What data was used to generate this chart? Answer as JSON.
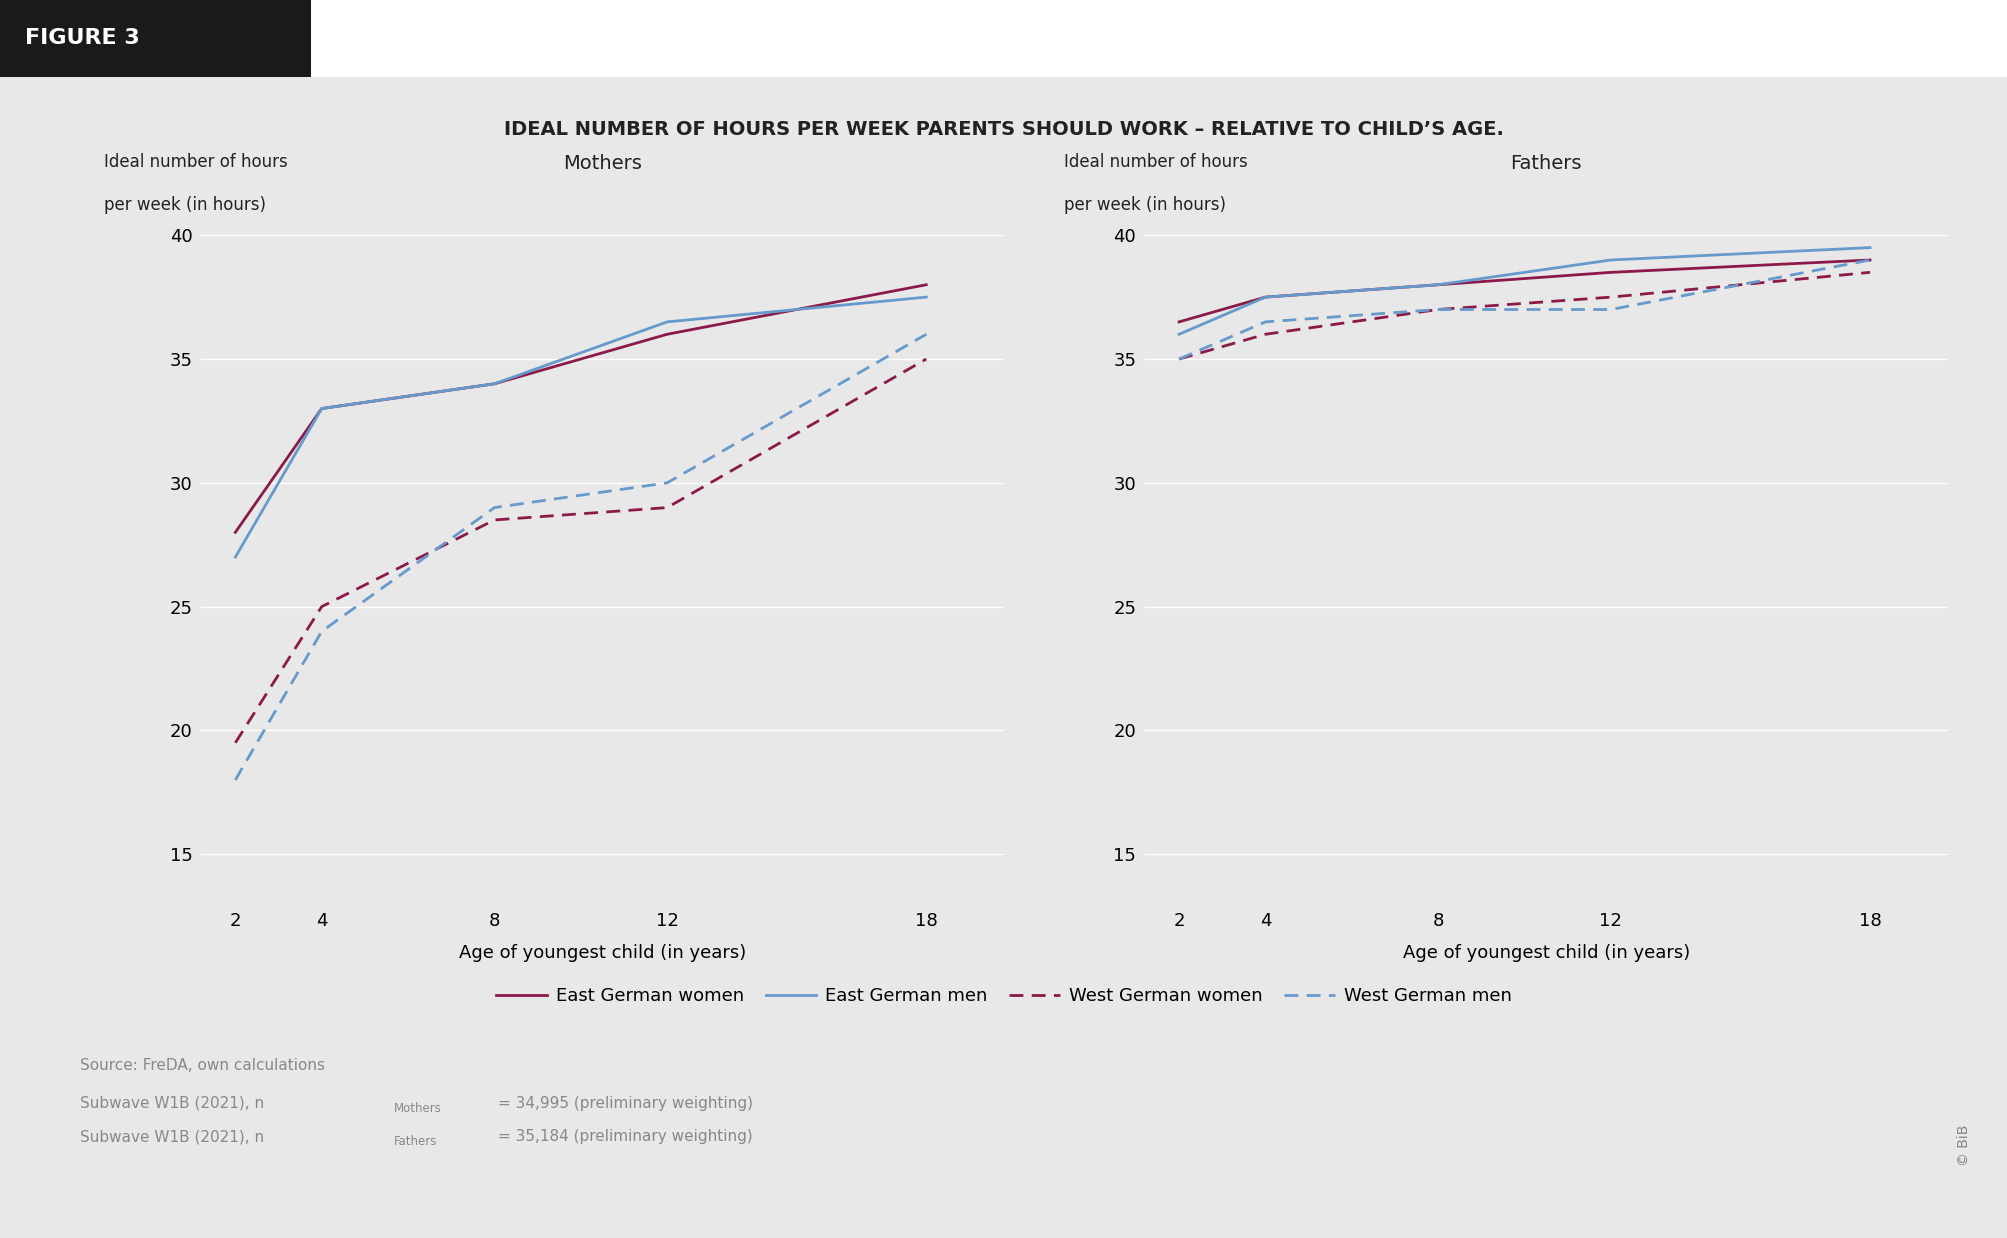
{
  "title": "IDEAL NUMBER OF HOURS PER WEEK PARENTS SHOULD WORK – RELATIVE TO CHILD’S AGE.",
  "subtitle_left": "Mothers",
  "subtitle_right": "Fathers",
  "ylabel_line1": "Ideal number of hours",
  "ylabel_line2": "per week (in hours)",
  "xlabel": "Age of youngest child (in years)",
  "x_values": [
    2,
    4,
    8,
    12,
    18
  ],
  "mothers": {
    "east_women": [
      28.0,
      33.0,
      34.0,
      36.0,
      38.0
    ],
    "east_men": [
      27.0,
      33.0,
      34.0,
      36.5,
      37.5
    ],
    "west_women": [
      19.5,
      25.0,
      28.5,
      29.0,
      35.0
    ],
    "west_men": [
      18.0,
      24.0,
      29.0,
      30.0,
      36.0
    ]
  },
  "fathers": {
    "east_women": [
      36.5,
      37.5,
      38.0,
      38.5,
      39.0
    ],
    "east_men": [
      36.0,
      37.5,
      38.0,
      39.0,
      39.5
    ],
    "west_women": [
      35.0,
      36.0,
      37.0,
      37.5,
      38.5
    ],
    "west_men": [
      35.0,
      36.5,
      37.0,
      37.0,
      39.0
    ]
  },
  "color_east_women": "#8B1A4A",
  "color_east_men": "#6699CC",
  "color_west_women": "#8B1A4A",
  "color_west_men": "#6699CC",
  "ylim": [
    13,
    42
  ],
  "yticks": [
    15,
    20,
    25,
    30,
    35,
    40
  ],
  "xticks": [
    2,
    4,
    8,
    12,
    18
  ],
  "plot_bg_color": "#E8E8E8",
  "fig_bg_color": "#EFEFEF",
  "figure_label": "FIGURE 3",
  "source_text": "Source: FreDA, own calculations",
  "copyright": "© BiB",
  "legend_entries": [
    "East German women",
    "East German men",
    "West German women",
    "West German men"
  ]
}
